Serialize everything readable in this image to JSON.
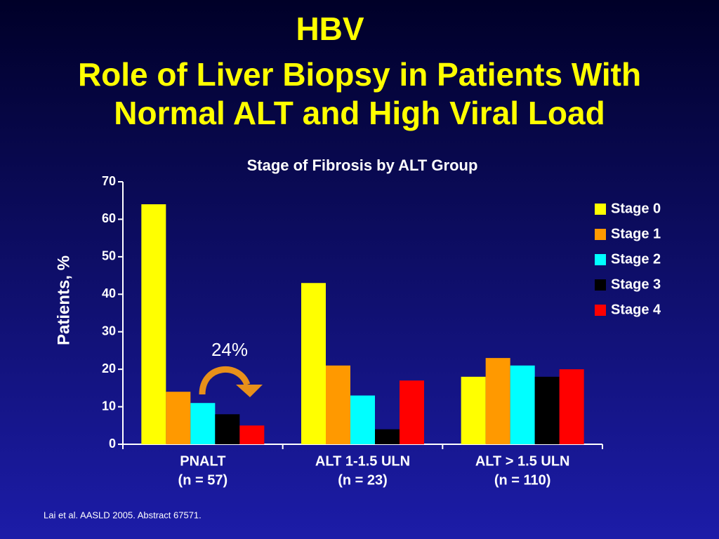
{
  "chart_data": {
    "type": "bar",
    "title": "HBV",
    "subtitle": [
      "Role of Liver Biopsy in Patients With",
      "Normal ALT and High Viral Load"
    ],
    "chart_title": "Stage of Fibrosis by ALT Group",
    "y_label": "Patients, %",
    "categories": [
      "PNALT",
      "ALT 1-1.5 ULN",
      "ALT > 1.5 ULN"
    ],
    "category_notes": [
      "(n = 57)",
      "(n = 23)",
      "(n = 110)"
    ],
    "series": [
      {
        "name": "Stage 0",
        "color": "#ffff00",
        "values": [
          64,
          43,
          18
        ]
      },
      {
        "name": "Stage 1",
        "color": "#ff9900",
        "values": [
          14,
          21,
          23
        ]
      },
      {
        "name": "Stage 2",
        "color": "#00ffff",
        "values": [
          11,
          13,
          21
        ]
      },
      {
        "name": "Stage 3",
        "color": "#000000",
        "values": [
          8,
          4,
          18
        ]
      },
      {
        "name": "Stage 4",
        "color": "#ff0000",
        "values": [
          5,
          17,
          20
        ]
      }
    ],
    "ylim": [
      0,
      70
    ],
    "yticks": [
      0,
      10,
      20,
      30,
      40,
      50,
      60,
      70
    ],
    "legend": "right",
    "annotation": "24%",
    "footnote": "Lai et al. AASLD 2005. Abstract 67571."
  }
}
